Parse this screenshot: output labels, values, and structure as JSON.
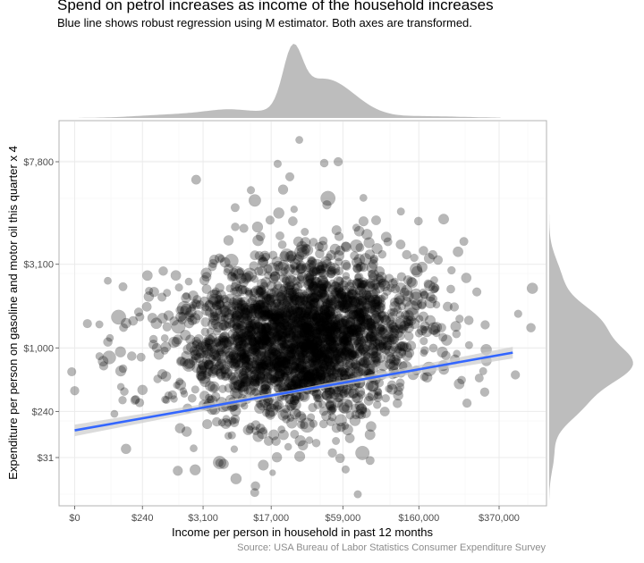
{
  "title": "Spend on petrol increases as income of the household increases",
  "subtitle": "Blue line shows robust regression using M estimator.  Both axes are transformed.",
  "source": "Source: USA Bureau of Labor Statistics Consumer Expenditure Survey",
  "colors": {
    "points": "#000000",
    "regression_line": "#3366ff",
    "confidence_band": "#cccccc",
    "density": "#bdbdbd",
    "grid": "#ebebeb",
    "panel_border": "#b3b3b3"
  },
  "chart_data": {
    "type": "scatter",
    "title": "Spend on petrol increases as income of the household increases",
    "subtitle": "Blue line shows robust regression using M estimator.  Both axes are transformed.",
    "xlabel": "Income per person in household in past 12 months",
    "ylabel": "Expenditure per person on gasoline and motor oil this quarter x 4",
    "x_scale": "transformed (power)",
    "y_scale": "transformed (power)",
    "x_ticks": [
      {
        "value": 0,
        "label": "$0"
      },
      {
        "value": 240,
        "label": "$240"
      },
      {
        "value": 3100,
        "label": "$3,100"
      },
      {
        "value": 17000,
        "label": "$17,000"
      },
      {
        "value": 59000,
        "label": "$59,000"
      },
      {
        "value": 160000,
        "label": "$160,000"
      },
      {
        "value": 370000,
        "label": "$370,000"
      }
    ],
    "y_ticks": [
      {
        "value": 31,
        "label": "$31"
      },
      {
        "value": 240,
        "label": "$240"
      },
      {
        "value": 1000,
        "label": "$1,000"
      },
      {
        "value": 3100,
        "label": "$3,100"
      },
      {
        "value": 7800,
        "label": "$7,800"
      }
    ],
    "xlim": [
      -400,
      700000
    ],
    "ylim": [
      1,
      18000
    ],
    "grid": true,
    "regression_line": {
      "method": "robust M estimator",
      "start": {
        "x": 0,
        "y": 125
      },
      "end": {
        "x": 420000,
        "y": 920
      }
    },
    "notable_points": [
      {
        "x": 8,
        "y": 720
      },
      {
        "x": 0,
        "y": 420
      },
      {
        "x": 60,
        "y": 330
      },
      {
        "x": 150,
        "y": 330
      },
      {
        "x": 2400,
        "y": 11
      },
      {
        "x": 5000,
        "y": 21
      },
      {
        "x": 17500,
        "y": 8
      },
      {
        "x": 24000,
        "y": 11000
      },
      {
        "x": 55000,
        "y": 7800
      },
      {
        "x": 230000,
        "y": 2900
      },
      {
        "x": 430000,
        "y": 600
      }
    ],
    "marginal_densities": {
      "x": "kernel density of income (top)",
      "y": "kernel density of expenditure (right)"
    }
  }
}
